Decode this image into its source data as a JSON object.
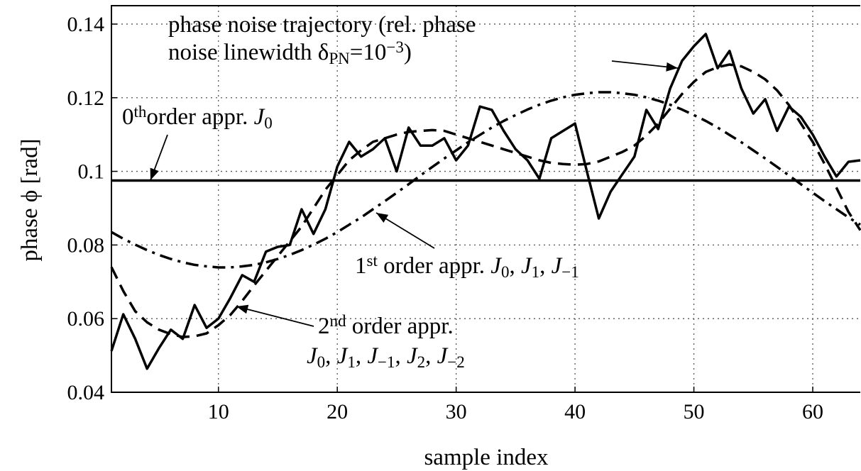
{
  "chart_data": {
    "type": "line",
    "xlabel": "sample index",
    "ylabel": "phase ϕ [rad]",
    "x": [
      1,
      2,
      3,
      4,
      5,
      6,
      7,
      8,
      9,
      10,
      11,
      12,
      13,
      14,
      15,
      16,
      17,
      18,
      19,
      20,
      21,
      22,
      23,
      24,
      25,
      26,
      27,
      28,
      29,
      30,
      31,
      32,
      33,
      34,
      35,
      36,
      37,
      38,
      39,
      40,
      41,
      42,
      43,
      44,
      45,
      46,
      47,
      48,
      49,
      50,
      51,
      52,
      53,
      54,
      55,
      56,
      57,
      58,
      59,
      60,
      61,
      62,
      63,
      64
    ],
    "xlim": [
      1,
      64
    ],
    "xticks": [
      10,
      20,
      30,
      40,
      50,
      60
    ],
    "ylim": [
      0.04,
      0.145
    ],
    "yticks": [
      0.04,
      0.06,
      0.08,
      0.1,
      0.12,
      0.14
    ],
    "grid": true,
    "series": [
      {
        "color": "#000000",
        "style": "solid",
        "width": 3.5,
        "values": [
          0.0512,
          0.0612,
          0.0545,
          0.0464,
          0.052,
          0.057,
          0.0545,
          0.0637,
          0.0575,
          0.06,
          0.0656,
          0.0718,
          0.07,
          0.0782,
          0.0795,
          0.08,
          0.0897,
          0.083,
          0.0897,
          0.1013,
          0.108,
          0.104,
          0.106,
          0.109,
          0.1,
          0.1119,
          0.107,
          0.107,
          0.109,
          0.103,
          0.107,
          0.1176,
          0.1167,
          0.111,
          0.106,
          0.103,
          0.098,
          0.109,
          0.111,
          0.113,
          0.1,
          0.0872,
          0.0945,
          0.0993,
          0.104,
          0.1167,
          0.1115,
          0.1225,
          0.13,
          0.134,
          0.1373,
          0.128,
          0.1327,
          0.1225,
          0.1157,
          0.1196,
          0.111,
          0.1176,
          0.1148,
          0.11,
          0.104,
          0.0986,
          0.1026,
          0.103
        ]
      },
      {
        "color": "#000000",
        "style": "solid",
        "width": 3.5,
        "values": [
          0.0975,
          0.0975,
          0.0975,
          0.0975,
          0.0975,
          0.0975,
          0.0975,
          0.0975,
          0.0975,
          0.0975,
          0.0975,
          0.0975,
          0.0975,
          0.0975,
          0.0975,
          0.0975,
          0.0975,
          0.0975,
          0.0975,
          0.0975,
          0.0975,
          0.0975,
          0.0975,
          0.0975,
          0.0975,
          0.0975,
          0.0975,
          0.0975,
          0.0975,
          0.0975,
          0.0975,
          0.0975,
          0.0975,
          0.0975,
          0.0975,
          0.0975,
          0.0975,
          0.0975,
          0.0975,
          0.0975,
          0.0975,
          0.0975,
          0.0975,
          0.0975,
          0.0975,
          0.0975,
          0.0975,
          0.0975,
          0.0975,
          0.0975,
          0.0975,
          0.0975,
          0.0975,
          0.0975,
          0.0975,
          0.0975,
          0.0975,
          0.0975,
          0.0975,
          0.0975,
          0.0975,
          0.0975,
          0.0975,
          0.0975
        ]
      },
      {
        "color": "#000000",
        "style": "dashdot",
        "width": 3.5,
        "values": [
          0.0835,
          0.0817,
          0.0801,
          0.0786,
          0.0773,
          0.0762,
          0.0753,
          0.0746,
          0.0742,
          0.0739,
          0.0739,
          0.0742,
          0.0746,
          0.0753,
          0.0762,
          0.0773,
          0.0786,
          0.0801,
          0.0817,
          0.0835,
          0.0855,
          0.0875,
          0.0897,
          0.0919,
          0.0942,
          0.0965,
          0.0989,
          0.1012,
          0.1035,
          0.1057,
          0.1079,
          0.1099,
          0.1119,
          0.1137,
          0.1153,
          0.1168,
          0.1181,
          0.1192,
          0.1201,
          0.1208,
          0.1212,
          0.1215,
          0.1215,
          0.1212,
          0.1208,
          0.1201,
          0.1192,
          0.1181,
          0.1168,
          0.1153,
          0.1137,
          0.1119,
          0.1099,
          0.1079,
          0.1057,
          0.1035,
          0.1012,
          0.0989,
          0.0965,
          0.0942,
          0.0919,
          0.0897,
          0.0875,
          0.0855
        ]
      },
      {
        "color": "#000000",
        "style": "dashed",
        "width": 3.5,
        "values": [
          0.074,
          0.0675,
          0.062,
          0.059,
          0.057,
          0.0558,
          0.055,
          0.0552,
          0.056,
          0.0582,
          0.061,
          0.0648,
          0.069,
          0.073,
          0.077,
          0.081,
          0.085,
          0.09,
          0.095,
          0.099,
          0.103,
          0.1057,
          0.108,
          0.109,
          0.11,
          0.1107,
          0.111,
          0.1112,
          0.111,
          0.11,
          0.109,
          0.108,
          0.107,
          0.106,
          0.105,
          0.104,
          0.103,
          0.1023,
          0.102,
          0.1018,
          0.102,
          0.1027,
          0.104,
          0.1053,
          0.107,
          0.1097,
          0.113,
          0.117,
          0.121,
          0.1243,
          0.127,
          0.1283,
          0.129,
          0.1285,
          0.127,
          0.125,
          0.122,
          0.118,
          0.113,
          0.108,
          0.102,
          0.0955,
          0.089,
          0.084
        ]
      }
    ],
    "annotations": [
      {
        "lines": [
          [
            {
              "text": "phase noise trajectory (rel. phase"
            }
          ],
          [
            {
              "text": "noise linewidth δ"
            },
            {
              "text": "PN",
              "style": "sub"
            },
            {
              "text": "=10"
            },
            {
              "text": "−3",
              "style": "sup"
            },
            {
              "text": ")"
            }
          ]
        ]
      },
      {
        "lines": [
          [
            {
              "text": "0"
            },
            {
              "text": "th",
              "style": "sup"
            },
            {
              "text": "order appr. "
            },
            {
              "text": "J",
              "style": "italic"
            },
            {
              "text": "0",
              "style": "sub"
            }
          ]
        ]
      },
      {
        "lines": [
          [
            {
              "text": "1"
            },
            {
              "text": "st",
              "style": "sup"
            },
            {
              "text": " order appr. "
            },
            {
              "text": "J",
              "style": "italic"
            },
            {
              "text": "0",
              "style": "sub"
            },
            {
              "text": ", "
            },
            {
              "text": "J",
              "style": "italic"
            },
            {
              "text": "1",
              "style": "sub"
            },
            {
              "text": ", "
            },
            {
              "text": "J",
              "style": "italic"
            },
            {
              "text": "−1",
              "style": "sub"
            }
          ]
        ]
      },
      {
        "lines": [
          [
            {
              "text": "2"
            },
            {
              "text": "nd",
              "style": "sup"
            },
            {
              "text": " order appr."
            }
          ],
          [
            {
              "text": "J",
              "style": "italic"
            },
            {
              "text": "0",
              "style": "sub"
            },
            {
              "text": ", "
            },
            {
              "text": "J",
              "style": "italic"
            },
            {
              "text": "1",
              "style": "sub"
            },
            {
              "text": ", "
            },
            {
              "text": "J",
              "style": "italic"
            },
            {
              "text": "−1",
              "style": "sub"
            },
            {
              "text": ", "
            },
            {
              "text": "J",
              "style": "italic"
            },
            {
              "text": "2",
              "style": "sub"
            },
            {
              "text": ", "
            },
            {
              "text": "J",
              "style": "italic"
            },
            {
              "text": "−2",
              "style": "sub"
            }
          ]
        ]
      }
    ]
  }
}
